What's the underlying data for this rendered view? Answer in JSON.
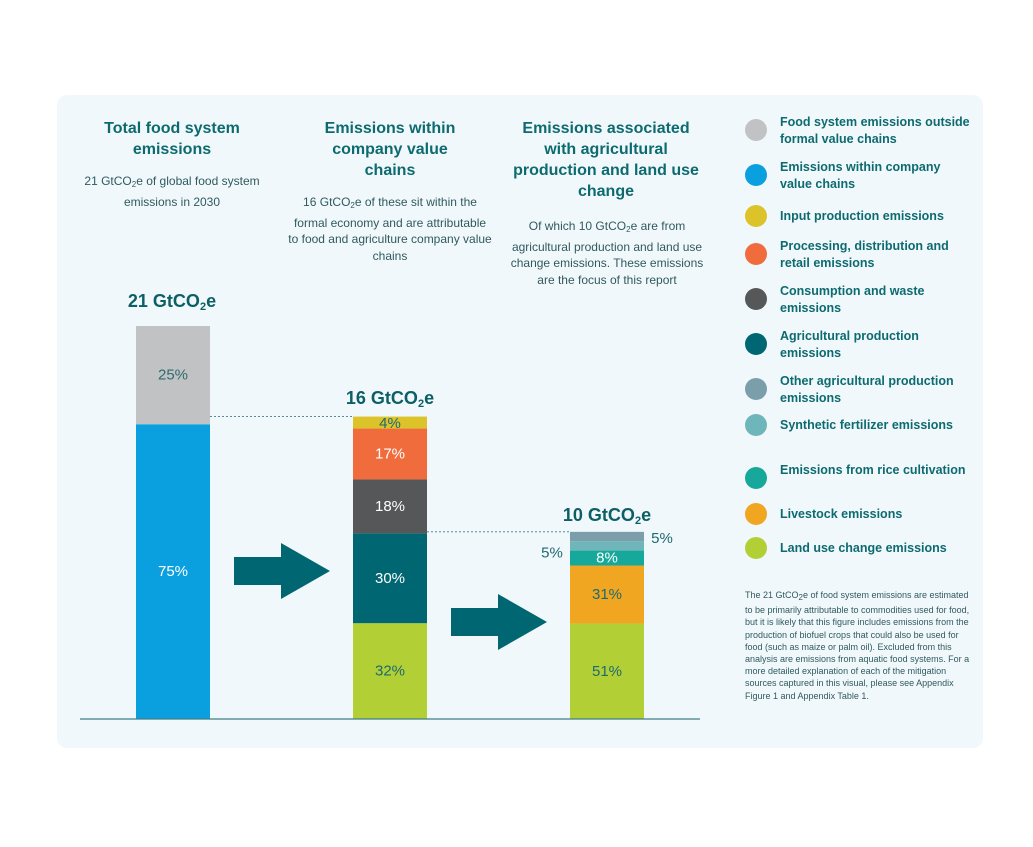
{
  "columns": [
    {
      "title": "Total food system emissions",
      "desc_pre": "21 GtCO",
      "desc_sub": "2",
      "desc_post": "e of global food system emissions in 2030"
    },
    {
      "title": "Emissions within company value chains",
      "desc_pre": "16 GtCO",
      "desc_sub": "2",
      "desc_post": "e of these sit within the formal economy and are attributable to food and agriculture company value chains"
    },
    {
      "title": "Emissions associated with agricultural production and land use change",
      "desc_pre": "Of which 10 GtCO",
      "desc_sub": "2",
      "desc_post": "e are from agricultural production and land use change emissions. These emissions are the focus of this report"
    }
  ],
  "totals": [
    {
      "pre": "21 GtCO",
      "sub": "2",
      "post": "e"
    },
    {
      "pre": "16 GtCO",
      "sub": "2",
      "post": "e"
    },
    {
      "pre": "10 GtCO",
      "sub": "2",
      "post": "e"
    }
  ],
  "legend": [
    {
      "label": "Food system emissions outside formal value chains",
      "color": "#c0c2c3"
    },
    {
      "label": "Emissions within company value chains",
      "color": "#0aa0e0"
    },
    {
      "label": "Input production emissions",
      "color": "#dcc32a"
    },
    {
      "label": "Processing, distribution and retail emissions",
      "color": "#f06c3c"
    },
    {
      "label": "Consumption and waste emissions",
      "color": "#555759"
    },
    {
      "label": "Agricultural production emissions",
      "color": "#006672"
    },
    {
      "label": "Other agricultural production emissions",
      "color": "#7a9fab"
    },
    {
      "label": "Synthetic fertilizer emissions",
      "color": "#6fb6bb"
    },
    {
      "label": "Emissions from rice cultivation",
      "color": "#16a89a"
    },
    {
      "label": "Livestock emissions",
      "color": "#f0a621"
    },
    {
      "label": "Land use change emissions",
      "color": "#b2cf36"
    }
  ],
  "footnote": {
    "pre": "The 21 GtCO",
    "sub": "2",
    "post": "e of food system emissions are estimated to be primarily attributable to commodities used for food, but it is likely that this figure includes emissions from the production of biofuel crops that could also be used for food (such as maize or palm oil). Excluded from this analysis are emissions from aquatic food systems. For a more detailed explanation of each of the mitigation sources captured in this visual, please see Appendix Figure 1 and Appendix Table 1."
  },
  "chart_data": {
    "type": "bar",
    "stacked": true,
    "unit": "GtCO2e",
    "bars": [
      {
        "total": 21,
        "segments": [
          {
            "name": "Emissions within company value chains",
            "percent": 75,
            "label": "75%",
            "color": "#0aa0e0"
          },
          {
            "name": "Food system emissions outside formal value chains",
            "percent": 25,
            "label": "25%",
            "color": "#c0c2c3"
          }
        ]
      },
      {
        "total": 16,
        "segments": [
          {
            "name": "Land use change emissions",
            "percent": 32,
            "label": "32%",
            "color": "#b2cf36"
          },
          {
            "name": "Agricultural production emissions",
            "percent": 30,
            "label": "30%",
            "color": "#006672"
          },
          {
            "name": "Consumption and waste emissions",
            "percent": 18,
            "label": "18%",
            "color": "#555759"
          },
          {
            "name": "Processing, distribution and retail emissions",
            "percent": 17,
            "label": "17%",
            "color": "#f06c3c"
          },
          {
            "name": "Input production emissions",
            "percent": 4,
            "label": "4%",
            "color": "#dcc32a"
          }
        ]
      },
      {
        "total": 10,
        "segments": [
          {
            "name": "Land use change emissions",
            "percent": 51,
            "label": "51%",
            "color": "#b2cf36"
          },
          {
            "name": "Livestock emissions",
            "percent": 31,
            "label": "31%",
            "color": "#f0a621"
          },
          {
            "name": "Emissions from rice cultivation",
            "percent": 8,
            "label": "8%",
            "color": "#16a89a"
          },
          {
            "name": "Synthetic fertilizer emissions",
            "percent": 5,
            "label": "5%",
            "color": "#6fb6bb"
          },
          {
            "name": "Other agricultural production emissions",
            "percent": 5,
            "label": "5%",
            "color": "#7a9fab"
          }
        ]
      }
    ]
  }
}
